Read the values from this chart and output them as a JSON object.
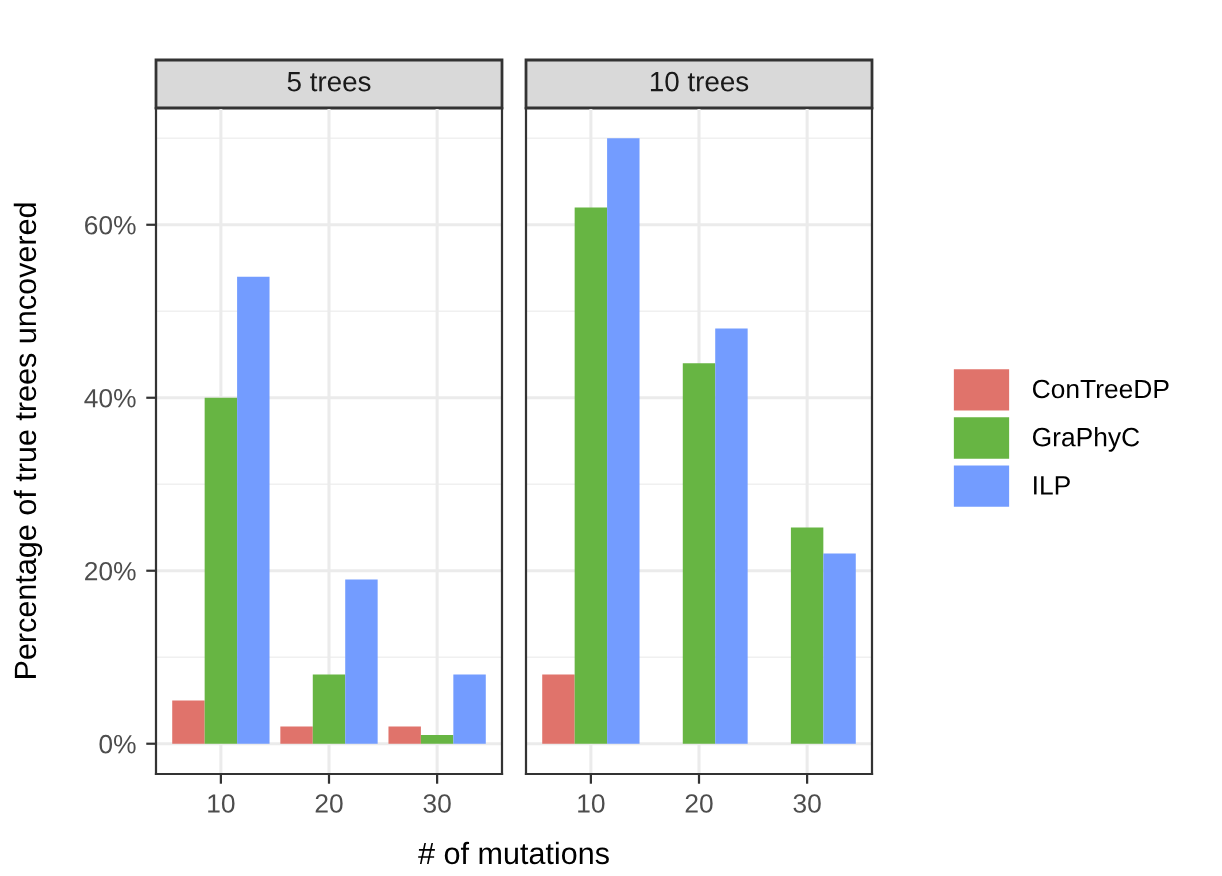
{
  "chart_data": [
    {
      "type": "bar",
      "title": "5 trees",
      "xlabel": "# of mutations",
      "ylabel": "Percentage of true trees uncovered",
      "categories": [
        "10",
        "20",
        "30"
      ],
      "series": [
        {
          "name": "ConTreeDP",
          "color": "#e0736b",
          "values": [
            5,
            2,
            2
          ]
        },
        {
          "name": "GraPhyC",
          "color": "#67b543",
          "values": [
            40,
            8,
            1
          ]
        },
        {
          "name": "ILP",
          "color": "#739cff",
          "values": [
            54,
            19,
            8
          ]
        }
      ],
      "ylim": [
        -3.5,
        73.5
      ],
      "yticks": [
        {
          "value": 0,
          "label": "0%"
        },
        {
          "value": 20,
          "label": "20%"
        },
        {
          "value": 40,
          "label": "40%"
        },
        {
          "value": 60,
          "label": "60%"
        }
      ],
      "grid": true,
      "legend": "right"
    },
    {
      "type": "bar",
      "title": "10 trees",
      "categories": [
        "10",
        "20",
        "30"
      ],
      "series": [
        {
          "color": "#e0736b",
          "values": [
            8,
            null,
            null
          ]
        },
        {
          "color": "#67b543",
          "values": [
            62,
            44,
            25
          ]
        },
        {
          "color": "#739cff",
          "values": [
            70,
            48,
            22
          ]
        }
      ],
      "ylim": [
        -3.5,
        73.5
      ],
      "yticks": [
        {
          "value": 0,
          "label": null
        },
        {
          "value": 20,
          "label": null
        },
        {
          "value": 40,
          "label": null
        },
        {
          "value": 60,
          "label": null
        }
      ],
      "grid": true,
      "tick_labels": "x"
    }
  ]
}
